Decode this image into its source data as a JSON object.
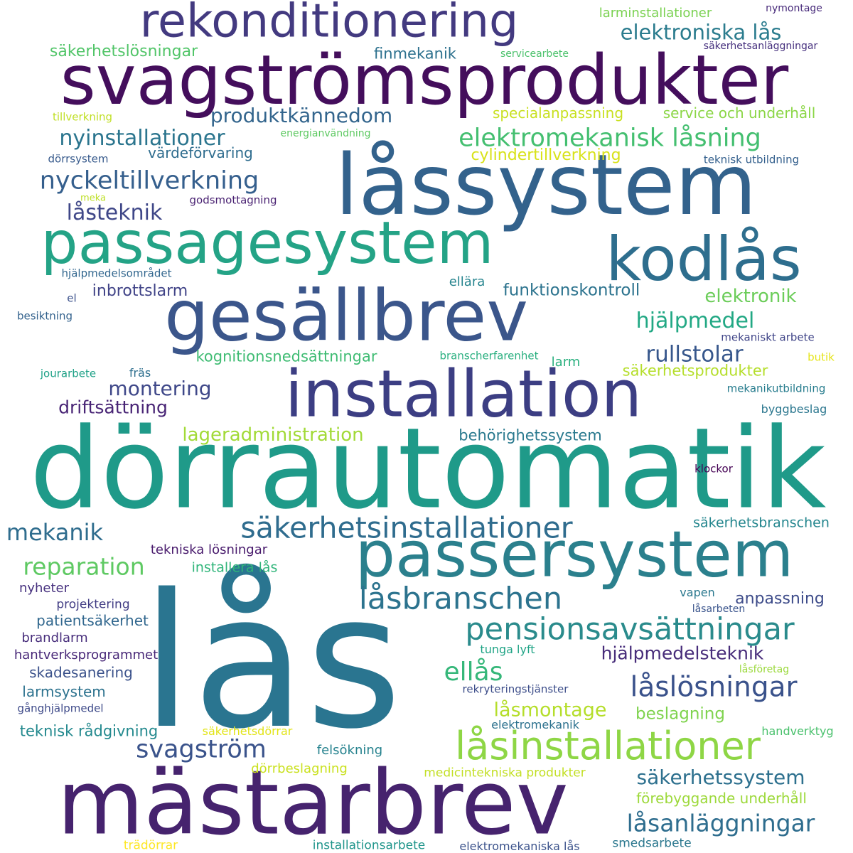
{
  "words": [
    {
      "text": "lås",
      "color": "#2a7590"
    },
    {
      "text": "dörrautomatik",
      "color": "#1f9a89"
    },
    {
      "text": "mästarbrev",
      "color": "#46236e"
    },
    {
      "text": "låssystem",
      "color": "#33628c"
    },
    {
      "text": "svagströmsprodukter",
      "color": "#440e5c"
    },
    {
      "text": "gesällbrev",
      "color": "#3b568b"
    },
    {
      "text": "installation",
      "color": "#3c3e83"
    },
    {
      "text": "passersystem",
      "color": "#2b808d"
    },
    {
      "text": "passagesystem",
      "color": "#24a386"
    },
    {
      "text": "kodlås",
      "color": "#2e6e8e"
    },
    {
      "text": "rekonditionering",
      "color": "#433a80"
    },
    {
      "text": "låsinstallationer",
      "color": "#8ed645"
    },
    {
      "text": "pensionsavsättningar",
      "color": "#2a8b8c"
    },
    {
      "text": "säkerhetsinstallationer",
      "color": "#2f6c8e"
    },
    {
      "text": "låsbranschen",
      "color": "#2c738e"
    },
    {
      "text": "låslösningar",
      "color": "#3a528b"
    },
    {
      "text": "elektromekanisk låsning",
      "color": "#44bf70"
    },
    {
      "text": "nyckeltillverkning",
      "color": "#355f8d"
    },
    {
      "text": "elektroniska lås",
      "color": "#2b7c8e"
    },
    {
      "text": "låsanläggningar",
      "color": "#2e6d8e"
    },
    {
      "text": "reparation",
      "color": "#5ec962"
    },
    {
      "text": "mekanik",
      "color": "#2f6d8e"
    },
    {
      "text": "svagström",
      "color": "#3a538b"
    },
    {
      "text": "hjälpmedel",
      "color": "#22a884"
    },
    {
      "text": "rullstolar",
      "color": "#37578c"
    },
    {
      "text": "nyinstallationer",
      "color": "#2b758e"
    },
    {
      "text": "ellås",
      "color": "#35b779"
    },
    {
      "text": "låsteknik",
      "color": "#3f4788"
    },
    {
      "text": "montering",
      "color": "#3f4889"
    },
    {
      "text": "produktkännedom",
      "color": "#33658d"
    },
    {
      "text": "säkerhetssystem",
      "color": "#2d708e"
    },
    {
      "text": "elektronik",
      "color": "#6ccd5a"
    },
    {
      "text": "driftsättning",
      "color": "#482475"
    },
    {
      "text": "låsmontage",
      "color": "#b5de2b"
    },
    {
      "text": "lageradministration",
      "color": "#a2da37"
    },
    {
      "text": "hjälpmedelsteknik",
      "color": "#472c7a"
    },
    {
      "text": "säkerhetslösningar",
      "color": "#52c569"
    },
    {
      "text": "specialanpassning",
      "color": "#c8e020"
    },
    {
      "text": "service och underhåll",
      "color": "#8bd646"
    },
    {
      "text": "larminstallationer",
      "color": "#7ad151"
    },
    {
      "text": "värdeförvaring",
      "color": "#2e6c8e"
    },
    {
      "text": "finmekanik",
      "color": "#2d718e"
    },
    {
      "text": "beslagning",
      "color": "#7fd34e"
    },
    {
      "text": "inbrottslarm",
      "color": "#404387"
    },
    {
      "text": "funktionskontroll",
      "color": "#2c738e"
    },
    {
      "text": "kognitionsnedsättningar",
      "color": "#3fbc73"
    },
    {
      "text": "cylindertillverkning",
      "color": "#d8e219"
    },
    {
      "text": "behörighetssystem",
      "color": "#29798e"
    },
    {
      "text": "säkerhetsprodukter",
      "color": "#b5de2b"
    },
    {
      "text": "anpassning",
      "color": "#3e4c8a"
    },
    {
      "text": "förebyggande underhåll",
      "color": "#9dd93b"
    },
    {
      "text": "teknisk rådgivning",
      "color": "#23898e"
    },
    {
      "text": "tekniska lösningar",
      "color": "#481a6c"
    },
    {
      "text": "säkerhetsbranschen",
      "color": "#24868e"
    },
    {
      "text": "installera lås",
      "color": "#30b57a"
    },
    {
      "text": "patientsäkerhet",
      "color": "#31678e"
    },
    {
      "text": "skadesanering",
      "color": "#3b528b"
    },
    {
      "text": "larmsystem",
      "color": "#2c728e"
    },
    {
      "text": "hantverksprogrammet",
      "color": "#482878"
    },
    {
      "text": "nyheter",
      "color": "#46307e"
    },
    {
      "text": "brandlarm",
      "color": "#472d7b"
    },
    {
      "text": "projektering",
      "color": "#433e85"
    },
    {
      "text": "felsökning",
      "color": "#26828e"
    },
    {
      "text": "dörrbeslagning",
      "color": "#cae11f"
    },
    {
      "text": "medicintekniska produkter",
      "color": "#c2df23"
    },
    {
      "text": "smedsarbete",
      "color": "#2a778e"
    },
    {
      "text": "installationsarbete",
      "color": "#1f958b"
    },
    {
      "text": "elektromekaniska lås",
      "color": "#3b528b"
    },
    {
      "text": "trädörrar",
      "color": "#fde725"
    },
    {
      "text": "elektromekanik",
      "color": "#2c718e"
    },
    {
      "text": "säkerhetsdörrar",
      "color": "#e2e418"
    },
    {
      "text": "handverktyg",
      "color": "#4ac16d"
    },
    {
      "text": "rekryteringstjänster",
      "color": "#3d4e8a"
    },
    {
      "text": "tunga lyft",
      "color": "#20a486"
    },
    {
      "text": "låsföretag",
      "color": "#9bd93c"
    },
    {
      "text": "låsarbeten",
      "color": "#3a548c"
    },
    {
      "text": "vapen",
      "color": "#2a788e"
    },
    {
      "text": "gånghjälpmedel",
      "color": "#3e4a89"
    },
    {
      "text": "ellära",
      "color": "#25848e"
    },
    {
      "text": "el",
      "color": "#3b518b"
    },
    {
      "text": "besiktning",
      "color": "#33628d"
    },
    {
      "text": "hjälpmedelsområdet",
      "color": "#31668e"
    },
    {
      "text": "jourarbete",
      "color": "#1fa187"
    },
    {
      "text": "fräs",
      "color": "#2e6f8e"
    },
    {
      "text": "larm",
      "color": "#2ab07f"
    },
    {
      "text": "branscherfarenhet",
      "color": "#29af7f"
    },
    {
      "text": "butik",
      "color": "#e5e419"
    },
    {
      "text": "mekanikutbildning",
      "color": "#287d8e"
    },
    {
      "text": "byggbeslag",
      "color": "#2a768e"
    },
    {
      "text": "klockor",
      "color": "#440154"
    },
    {
      "text": "mekaniskt arbete",
      "color": "#404588"
    },
    {
      "text": "teknisk utbildning",
      "color": "#34608d"
    },
    {
      "text": "godsmottagning",
      "color": "#482071"
    },
    {
      "text": "meka",
      "color": "#bddf26"
    },
    {
      "text": "dörrsystem",
      "color": "#375a8c"
    },
    {
      "text": "energianvändning",
      "color": "#5ec962"
    },
    {
      "text": "tillverkning",
      "color": "#c0df25"
    },
    {
      "text": "servicearbete",
      "color": "#4cc26c"
    },
    {
      "text": "säkerhetsanläggningar",
      "color": "#46307e"
    },
    {
      "text": "nymontage",
      "color": "#472a7a"
    }
  ]
}
